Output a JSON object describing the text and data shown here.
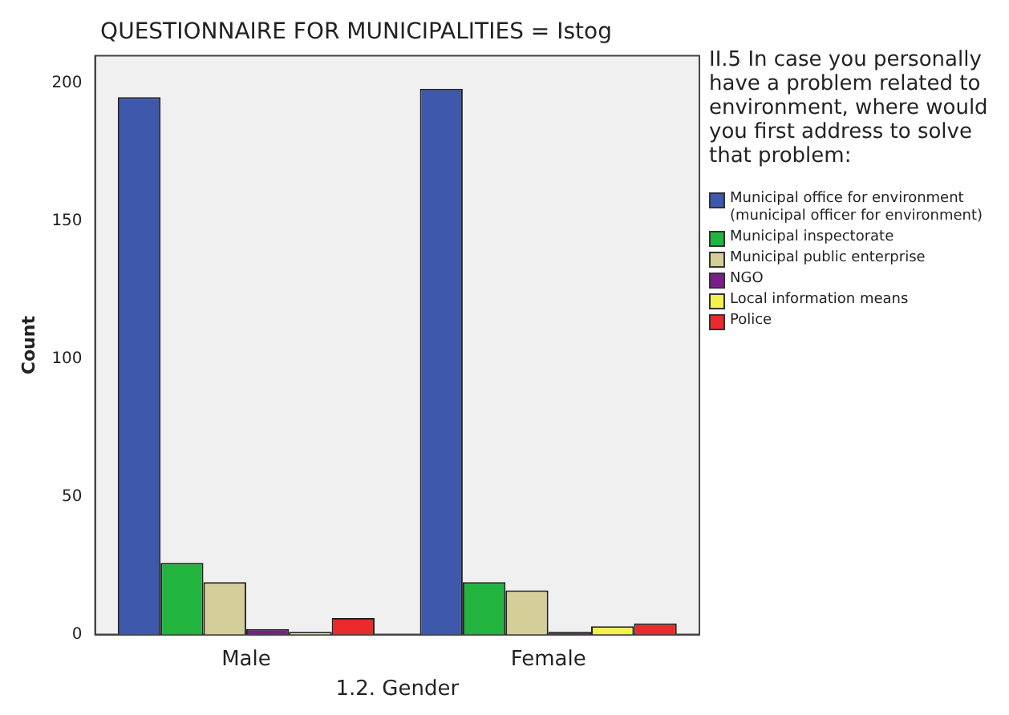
{
  "chart_data": {
    "type": "bar",
    "title": "QUESTIONNAIRE FOR MUNICIPALITIES = Istog",
    "xlabel": "1.2. Gender",
    "ylabel": "Count",
    "legend_title": "II.5 In case you personally have a problem related to environment, where would you first address to solve that problem:",
    "categories": [
      "Male",
      "Female"
    ],
    "series": [
      {
        "name": "Municipal office for environment (municipal officer for environment)",
        "color": "#3e58ac",
        "values": [
          195,
          198
        ]
      },
      {
        "name": "Municipal inspectorate",
        "color": "#21b43f",
        "values": [
          26,
          19
        ]
      },
      {
        "name": "Municipal public enterprise",
        "color": "#d4cf98",
        "values": [
          19,
          16
        ]
      },
      {
        "name": "NGO",
        "color": "#7a1f8a",
        "values": [
          2,
          1
        ]
      },
      {
        "name": "Local information means",
        "color": "#f4f14d",
        "values": [
          1,
          3
        ]
      },
      {
        "name": "Police",
        "color": "#eb2b2b",
        "values": [
          6,
          4
        ]
      }
    ],
    "ylim": [
      0,
      210
    ],
    "yticks": [
      0,
      50,
      100,
      150,
      200
    ],
    "grid": false,
    "legend": "right"
  }
}
